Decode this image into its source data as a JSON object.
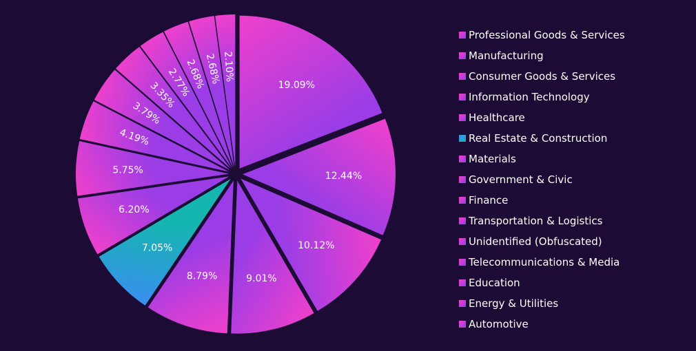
{
  "chart_data": {
    "type": "pie",
    "title": "",
    "legend_position": "right",
    "label_color": "#ffffff",
    "background": "#1c0b35",
    "slices": [
      {
        "label": "Professional Goods & Services",
        "value": 19.09,
        "value_label": "19.09%",
        "color_start": "#f040cc",
        "color_end": "#9a3de6"
      },
      {
        "label": "Manufacturing",
        "value": 12.44,
        "value_label": "12.44%",
        "color_start": "#f040cc",
        "color_end": "#9a3de6"
      },
      {
        "label": "Consumer Goods & Services",
        "value": 10.12,
        "value_label": "10.12%",
        "color_start": "#f040cc",
        "color_end": "#9a3de6"
      },
      {
        "label": "Information Technology",
        "value": 9.01,
        "value_label": "9.01%",
        "color_start": "#f040cc",
        "color_end": "#9a3de6"
      },
      {
        "label": "Healthcare",
        "value": 8.79,
        "value_label": "8.79%",
        "color_start": "#f040cc",
        "color_end": "#9a3de6"
      },
      {
        "label": "Real Estate & Construction",
        "value": 7.05,
        "value_label": "7.05%",
        "color_start": "#3a8ef0",
        "color_end": "#15b6b0"
      },
      {
        "label": "Materials",
        "value": 6.2,
        "value_label": "6.20%",
        "color_start": "#f040cc",
        "color_end": "#9a3de6"
      },
      {
        "label": "Government & Civic",
        "value": 5.75,
        "value_label": "5.75%",
        "color_start": "#f040cc",
        "color_end": "#9a3de6"
      },
      {
        "label": "Finance",
        "value": 4.19,
        "value_label": "4.19%",
        "color_start": "#f040cc",
        "color_end": "#9a3de6"
      },
      {
        "label": "Transportation & Logistics",
        "value": 3.79,
        "value_label": "3.79%",
        "color_start": "#f040cc",
        "color_end": "#9a3de6"
      },
      {
        "label": "Unidentified (Obfuscated)",
        "value": 3.35,
        "value_label": "3.35%",
        "color_start": "#f040cc",
        "color_end": "#9a3de6"
      },
      {
        "label": "Telecommunications & Media",
        "value": 2.77,
        "value_label": "2.77%",
        "color_start": "#f040cc",
        "color_end": "#9a3de6"
      },
      {
        "label": "Education",
        "value": 2.68,
        "value_label": "2.68%",
        "color_start": "#f040cc",
        "color_end": "#9a3de6"
      },
      {
        "label": "Energy & Utilities",
        "value": 2.68,
        "value_label": "2.68%",
        "color_start": "#f040cc",
        "color_end": "#9a3de6"
      },
      {
        "label": "Automotive",
        "value": 2.1,
        "value_label": "2.10%",
        "color_start": "#f040cc",
        "color_end": "#9a3de6"
      }
    ]
  }
}
